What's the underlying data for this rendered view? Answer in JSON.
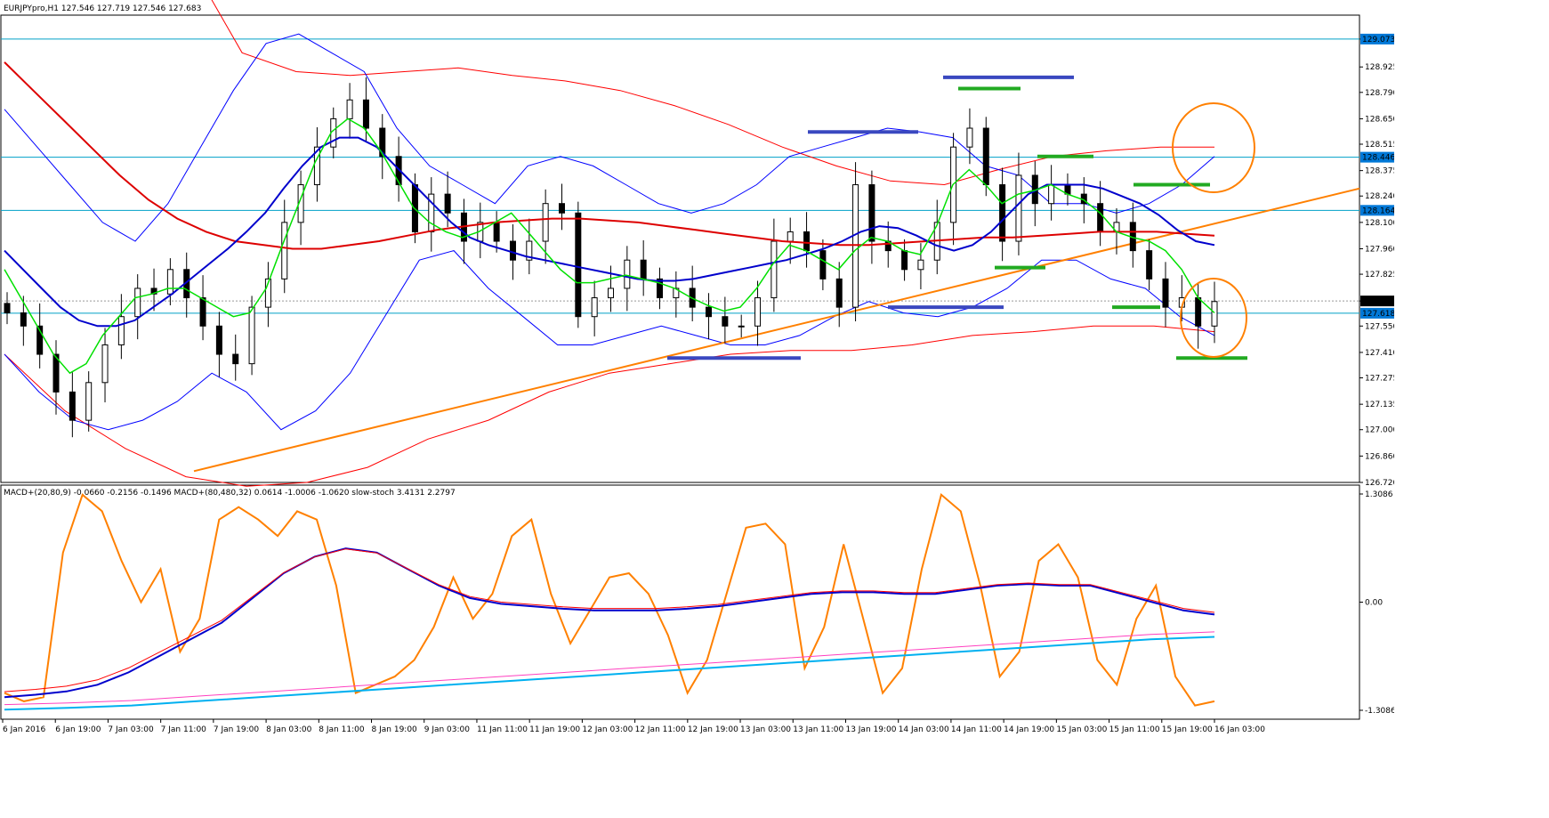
{
  "window": {
    "symbol_header": "EURJPYpro,H1",
    "ohlc_header": "127.546 127.719 127.546 127.683",
    "macd_header": "MACD+(20,80,9) -0.0660 -0.2156 -0.1496   MACD+(80,480,32) 0.0614 -1.0006 -1.0620   slow-stoch 3.4131 2.2797"
  },
  "colors": {
    "candle": "#000000",
    "bb_outer": "#0000ff",
    "bb_red": "#ff0000",
    "ma_fast": "#00e000",
    "ma_blue": "#0000cc",
    "ma_red": "#dd0000",
    "trendline": "#ff8000",
    "hline": "#00a0c8",
    "macd_orange": "#ff8000",
    "macd_cyan": "#00b0f0",
    "macd_pink": "#ff40c0",
    "support_green": "#22aa22",
    "resistance_blue": "#3a48c0",
    "price_label_bg": "#0078d7"
  },
  "price_axis": {
    "ticks": [
      "129.073",
      "128.925",
      "128.790",
      "128.650",
      "128.515",
      "128.375",
      "128.240",
      "128.100",
      "127.960",
      "127.825",
      "127.683",
      "127.550",
      "127.410",
      "127.275",
      "127.135",
      "127.000",
      "126.860",
      "126.720"
    ],
    "highlighted": [
      "129.073",
      "128.446",
      "128.164",
      "127.618",
      "127.683"
    ]
  },
  "macd_axis": {
    "ticks": [
      "1.3086",
      "0.00",
      "-1.3086"
    ]
  },
  "time_axis": {
    "labels": [
      "6 Jan 2016",
      "6 Jan 19:00",
      "7 Jan 03:00",
      "7 Jan 11:00",
      "7 Jan 19:00",
      "8 Jan 03:00",
      "8 Jan 11:00",
      "8 Jan 19:00",
      "9 Jan 03:00",
      "11 Jan 11:00",
      "11 Jan 19:00",
      "12 Jan 03:00",
      "12 Jan 11:00",
      "12 Jan 19:00",
      "13 Jan 03:00",
      "13 Jan 11:00",
      "13 Jan 19:00",
      "14 Jan 03:00",
      "14 Jan 11:00",
      "14 Jan 19:00",
      "15 Jan 03:00",
      "15 Jan 11:00",
      "15 Jan 19:00",
      "16 Jan 03:00"
    ]
  },
  "chart_data": [
    {
      "type": "candlestick",
      "title": "EURJPYpro,H1",
      "ylim": [
        126.72,
        129.2
      ],
      "horizontal_levels": [
        129.073,
        128.446,
        128.164,
        127.618
      ],
      "current_price": 127.683,
      "close_path": [
        127.62,
        127.55,
        127.4,
        127.2,
        127.05,
        127.25,
        127.45,
        127.6,
        127.75,
        127.72,
        127.85,
        127.7,
        127.55,
        127.4,
        127.35,
        127.65,
        127.8,
        128.1,
        128.3,
        128.5,
        128.65,
        128.75,
        128.6,
        128.45,
        128.3,
        128.05,
        128.25,
        128.15,
        128.0,
        128.1,
        128.0,
        127.9,
        128.0,
        128.2,
        128.15,
        127.6,
        127.7,
        127.75,
        127.9,
        127.8,
        127.7,
        127.75,
        127.65,
        127.6,
        127.55,
        127.55,
        127.7,
        128.0,
        128.05,
        127.95,
        127.8,
        127.65,
        128.3,
        128.0,
        127.95,
        127.85,
        127.9,
        128.1,
        128.5,
        128.6,
        128.3,
        128.0,
        128.35,
        128.2,
        128.3,
        128.25,
        128.2,
        128.05,
        128.1,
        127.95,
        127.8,
        127.65,
        127.7,
        127.55,
        127.68
      ],
      "ma_fast": [
        127.85,
        127.7,
        127.55,
        127.4,
        127.3,
        127.35,
        127.5,
        127.6,
        127.7,
        127.72,
        127.75,
        127.75,
        127.7,
        127.65,
        127.6,
        127.62,
        127.75,
        127.98,
        128.2,
        128.42,
        128.58,
        128.65,
        128.6,
        128.48,
        128.33,
        128.18,
        128.1,
        128.05,
        128.02,
        128.05,
        128.1,
        128.15,
        128.05,
        127.95,
        127.85,
        127.78,
        127.78,
        127.8,
        127.82,
        127.8,
        127.78,
        127.75,
        127.7,
        127.66,
        127.63,
        127.65,
        127.75,
        127.88,
        127.98,
        127.95,
        127.9,
        127.85,
        127.95,
        128.02,
        128.0,
        127.95,
        127.93,
        128.08,
        128.3,
        128.38,
        128.3,
        128.2,
        128.25,
        128.27,
        128.3,
        128.25,
        128.22,
        128.15,
        128.05,
        128.02,
        128.0,
        127.95,
        127.85,
        127.7,
        127.62
      ],
      "ma_blue": [
        127.95,
        127.85,
        127.75,
        127.65,
        127.58,
        127.55,
        127.55,
        127.58,
        127.65,
        127.72,
        127.8,
        127.88,
        127.96,
        128.05,
        128.15,
        128.28,
        128.4,
        128.5,
        128.55,
        128.55,
        128.5,
        128.4,
        128.3,
        128.2,
        128.1,
        128.02,
        127.98,
        127.95,
        127.92,
        127.9,
        127.88,
        127.86,
        127.84,
        127.82,
        127.8,
        127.79,
        127.79,
        127.8,
        127.82,
        127.84,
        127.86,
        127.88,
        127.9,
        127.93,
        127.96,
        128.0,
        128.05,
        128.08,
        128.07,
        128.03,
        127.98,
        127.95,
        127.98,
        128.05,
        128.15,
        128.25,
        128.3,
        128.3,
        128.3,
        128.28,
        128.24,
        128.2,
        128.14,
        128.06,
        128.0,
        127.98
      ],
      "ma_red": [
        128.95,
        128.8,
        128.65,
        128.5,
        128.35,
        128.22,
        128.12,
        128.05,
        128.0,
        127.98,
        127.96,
        127.96,
        127.98,
        128.0,
        128.03,
        128.06,
        128.08,
        128.1,
        128.11,
        128.12,
        128.12,
        128.11,
        128.1,
        128.08,
        128.06,
        128.04,
        128.02,
        128.0,
        127.99,
        127.98,
        127.98,
        127.99,
        128.0,
        128.01,
        128.02,
        128.02,
        128.03,
        128.04,
        128.05,
        128.05,
        128.05,
        128.04,
        128.03
      ],
      "bollinger_upper": [
        128.7,
        128.5,
        128.3,
        128.1,
        128.0,
        128.2,
        128.5,
        128.8,
        129.05,
        129.1,
        129.0,
        128.9,
        128.6,
        128.4,
        128.3,
        128.2,
        128.4,
        128.45,
        128.4,
        128.3,
        128.2,
        128.15,
        128.2,
        128.3,
        128.45,
        128.5,
        128.55,
        128.6,
        128.58,
        128.55,
        128.4,
        128.35,
        128.2,
        128.2,
        128.15,
        128.2,
        128.3,
        128.45
      ],
      "bollinger_lower": [
        127.4,
        127.2,
        127.05,
        127.0,
        127.05,
        127.15,
        127.3,
        127.2,
        127.0,
        127.1,
        127.3,
        127.6,
        127.9,
        127.95,
        127.75,
        127.6,
        127.45,
        127.45,
        127.5,
        127.55,
        127.5,
        127.45,
        127.45,
        127.5,
        127.6,
        127.68,
        127.62,
        127.6,
        127.65,
        127.75,
        127.9,
        127.9,
        127.8,
        127.75,
        127.6,
        127.5
      ],
      "bollinger_red_upper": [
        130.5,
        130.0,
        129.5,
        129.0,
        128.9,
        128.88,
        128.9,
        128.92,
        128.88,
        128.85,
        128.8,
        128.72,
        128.62,
        128.5,
        128.4,
        128.32,
        128.3,
        128.38,
        128.45,
        128.48,
        128.5,
        128.5
      ],
      "bollinger_red_lower": [
        127.4,
        127.1,
        126.9,
        126.75,
        126.7,
        126.72,
        126.8,
        126.95,
        127.05,
        127.2,
        127.3,
        127.35,
        127.4,
        127.42,
        127.42,
        127.45,
        127.5,
        127.52,
        127.55,
        127.55,
        127.52
      ]
    },
    {
      "type": "line",
      "title": "MACD+(20,80,9) MACD+(80,480,32) slow-stoch",
      "ylim": [
        -1.3086,
        1.3086
      ],
      "series": [
        {
          "name": "slow-stoch",
          "values": [
            -1.1,
            -1.2,
            -1.15,
            0.6,
            1.3,
            1.1,
            0.5,
            0.0,
            0.4,
            -0.6,
            -0.2,
            1.0,
            1.15,
            1.0,
            0.8,
            1.1,
            1.0,
            0.2,
            -1.1,
            -1.0,
            -0.9,
            -0.7,
            -0.3,
            0.3,
            -0.2,
            0.1,
            0.8,
            1.0,
            0.1,
            -0.5,
            -0.1,
            0.3,
            0.35,
            0.1,
            -0.4,
            -1.1,
            -0.7,
            0.1,
            0.9,
            0.95,
            0.7,
            -0.8,
            -0.3,
            0.7,
            -0.2,
            -1.1,
            -0.8,
            0.4,
            1.3,
            1.1,
            0.2,
            -0.9,
            -0.6,
            0.5,
            0.7,
            0.3,
            -0.7,
            -1.0,
            -0.2,
            0.2,
            -0.9,
            -1.25,
            -1.2
          ]
        },
        {
          "name": "MACD+(20,80,9)",
          "values": [
            -1.15,
            -1.12,
            -1.08,
            -1.0,
            -0.85,
            -0.65,
            -0.45,
            -0.25,
            0.05,
            0.35,
            0.55,
            0.65,
            0.6,
            0.4,
            0.2,
            0.05,
            -0.02,
            -0.05,
            -0.08,
            -0.1,
            -0.1,
            -0.1,
            -0.08,
            -0.05,
            0.0,
            0.05,
            0.1,
            0.12,
            0.12,
            0.1,
            0.1,
            0.15,
            0.2,
            0.22,
            0.2,
            0.2,
            0.1,
            0.0,
            -0.1,
            -0.15
          ]
        },
        {
          "name": "MACD+(80,480,32)",
          "values": [
            -1.3,
            -1.28,
            -1.25,
            -1.2,
            -1.15,
            -1.1,
            -1.05,
            -1.0,
            -0.95,
            -0.9,
            -0.85,
            -0.8,
            -0.75,
            -0.7,
            -0.65,
            -0.6,
            -0.55,
            -0.5,
            -0.45,
            -0.42
          ]
        }
      ]
    }
  ]
}
